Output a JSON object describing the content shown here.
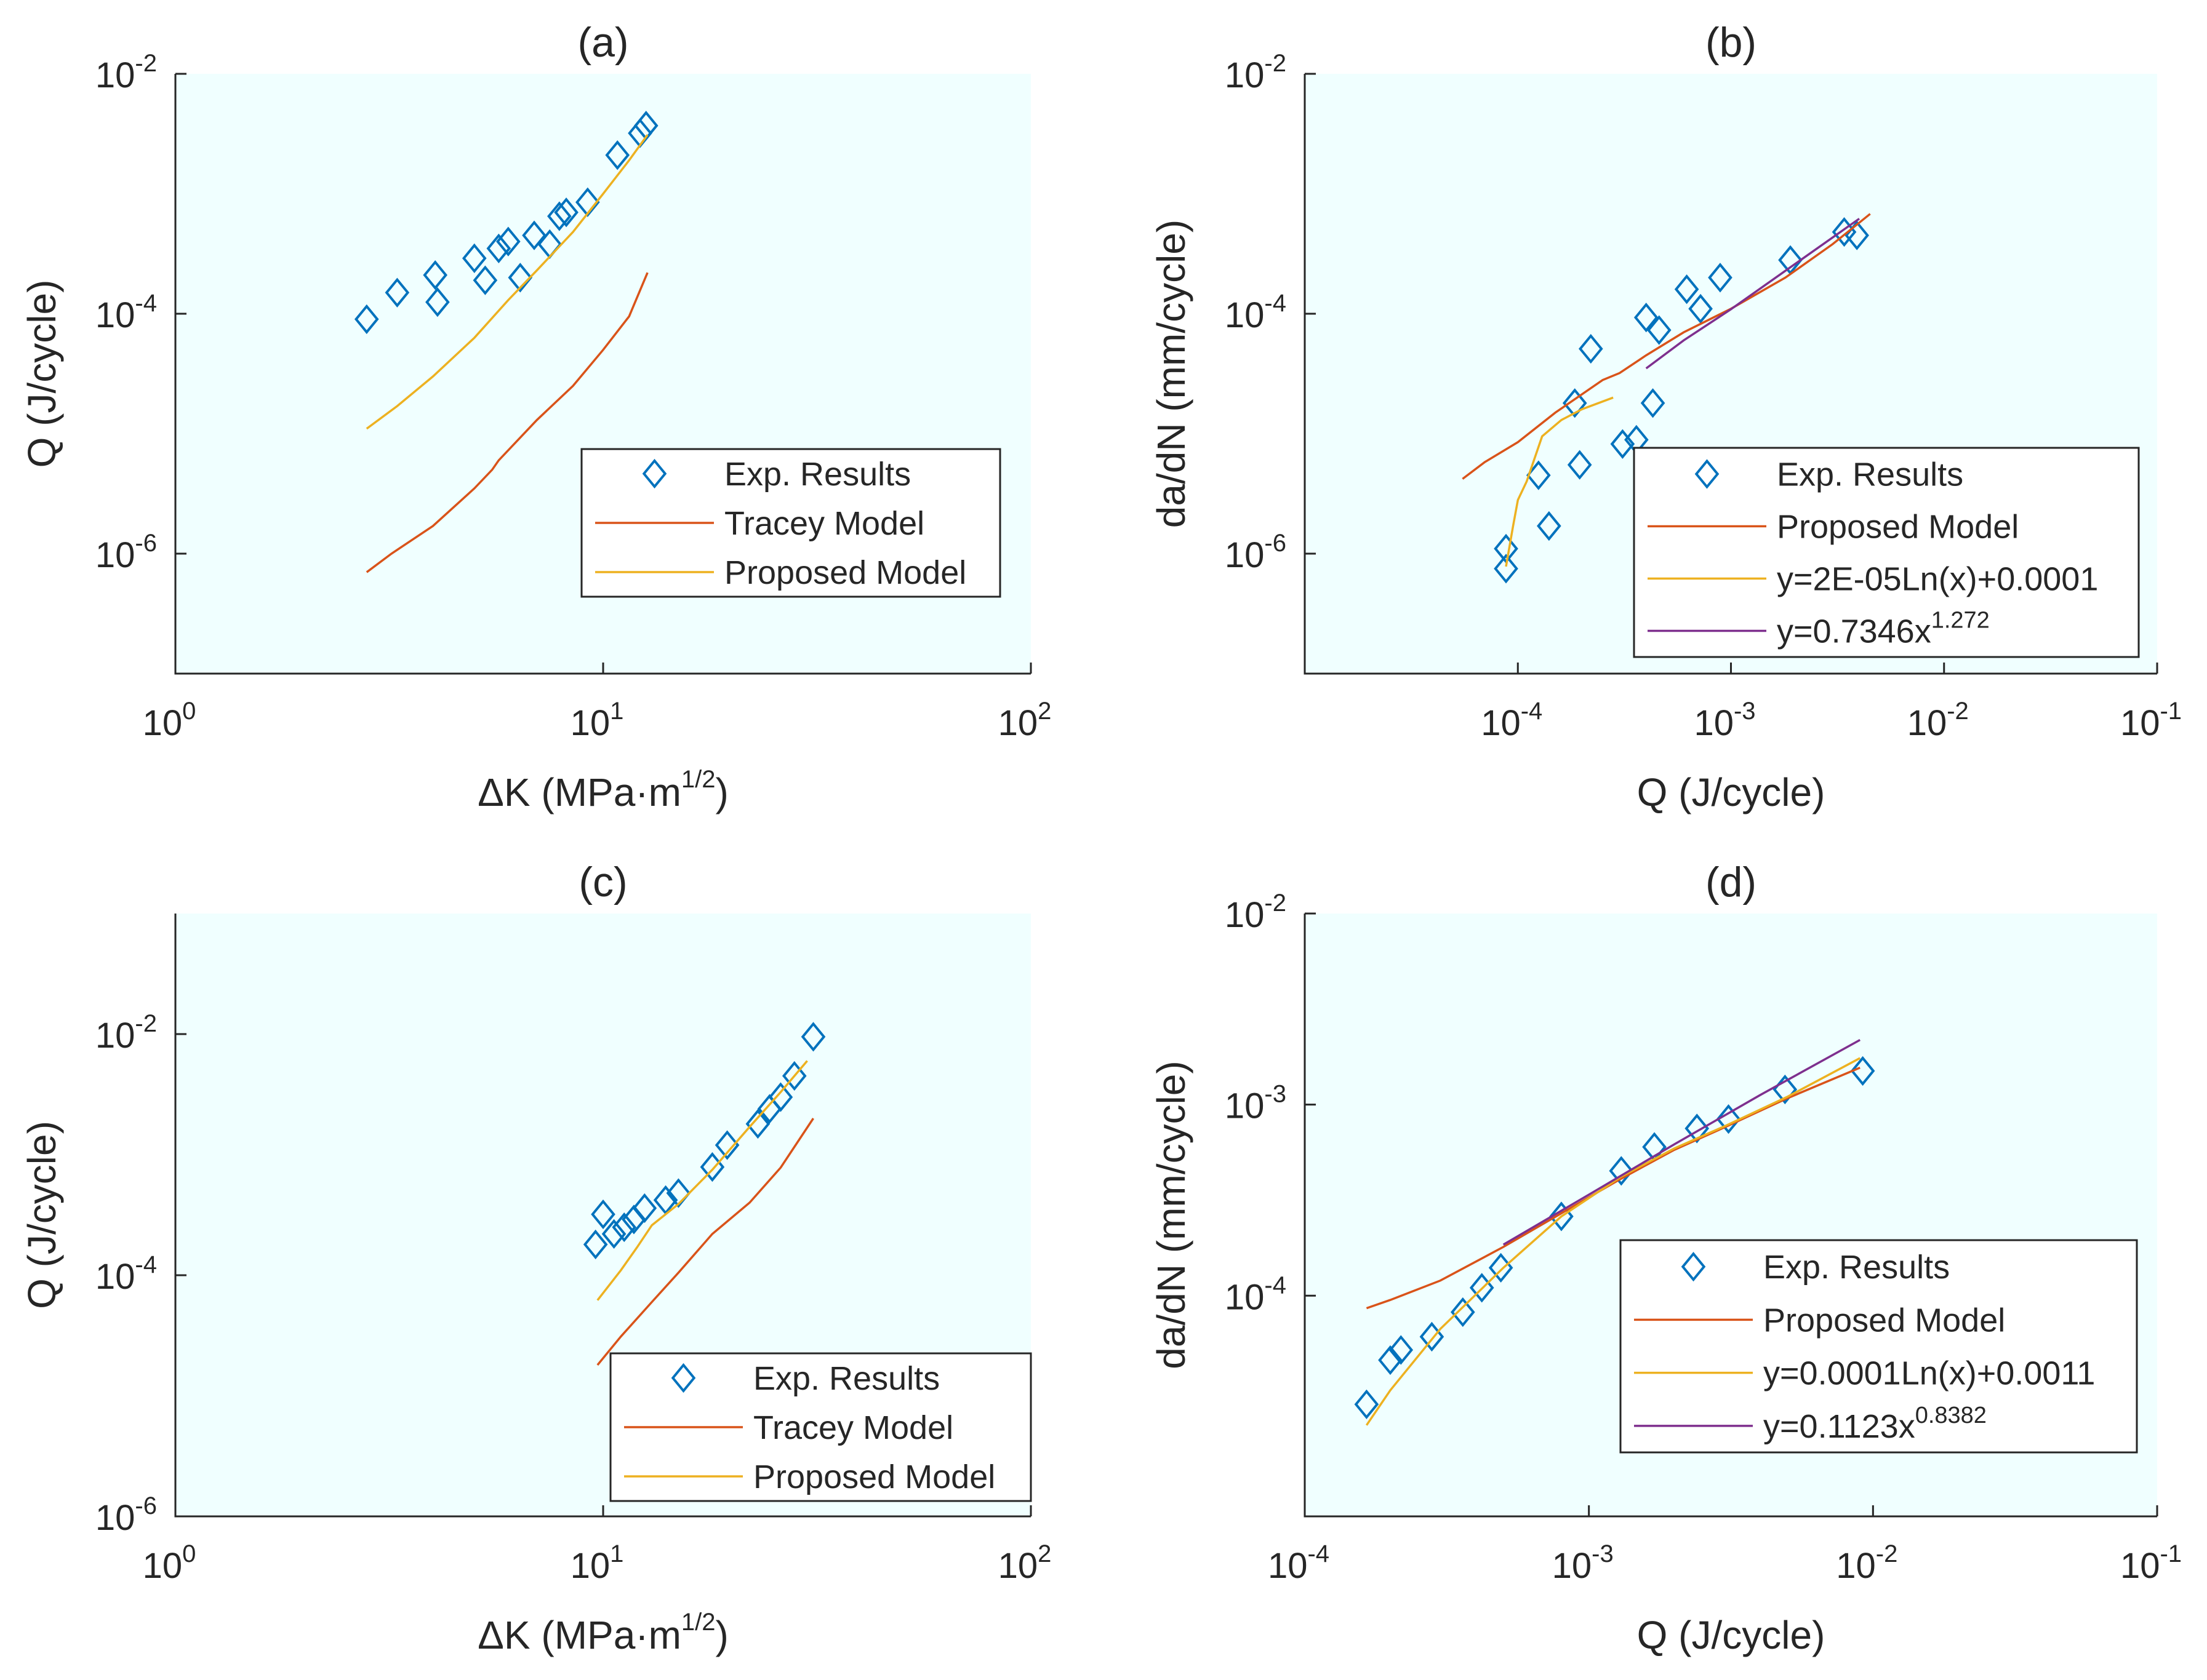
{
  "colors": {
    "plot_background": "#f0ffff",
    "experimental": "#0072bd",
    "tracey": "#d95319",
    "proposed": "#edb120",
    "power_fit": "#7e2f8e"
  },
  "chart_data": [
    {
      "panel": "(a)",
      "type": "scatter",
      "title": "(a)",
      "xlabel": {
        "base": "ΔK (MPa·m",
        "sup": "1/2",
        "close": ")"
      },
      "ylabel": "Q (J/cycle)",
      "xscale": "log",
      "yscale": "log",
      "xlim": [
        1,
        100
      ],
      "ylim": [
        1e-07,
        0.01
      ],
      "xticks": [
        {
          "value": 1,
          "base": "10",
          "exp": "0"
        },
        {
          "value": 10,
          "base": "10",
          "exp": "1"
        },
        {
          "value": 100,
          "base": "10",
          "exp": "2"
        }
      ],
      "yticks": [
        {
          "value": 1e-06,
          "base": "10",
          "exp": "-6"
        },
        {
          "value": 0.0001,
          "base": "10",
          "exp": "-4"
        },
        {
          "value": 0.01,
          "base": "10",
          "exp": "-2"
        }
      ],
      "legend_position": "lower-right",
      "series": [
        {
          "name": "Exp. Results",
          "kind": "markers",
          "color": "#0072bd",
          "points": [
            [
              2.8,
              9e-05
            ],
            [
              3.3,
              0.00015
            ],
            [
              4.05,
              0.00021
            ],
            [
              4.1,
              0.000125
            ],
            [
              5.0,
              0.00029
            ],
            [
              5.3,
              0.00019
            ],
            [
              5.7,
              0.00035
            ],
            [
              6.0,
              0.0004
            ],
            [
              6.4,
              0.0002
            ],
            [
              6.9,
              0.00045
            ],
            [
              7.5,
              0.00038
            ],
            [
              7.9,
              0.00065
            ],
            [
              8.2,
              0.0007
            ],
            [
              9.2,
              0.00085
            ],
            [
              10.8,
              0.0021
            ],
            [
              12.2,
              0.0032
            ],
            [
              12.6,
              0.0037
            ]
          ]
        },
        {
          "name": "Tracey Model",
          "kind": "line",
          "color": "#d95319",
          "points": [
            [
              2.8,
              7e-07
            ],
            [
              3.2,
              1e-06
            ],
            [
              4.0,
              1.7e-06
            ],
            [
              5.0,
              3.5e-06
            ],
            [
              5.5,
              5e-06
            ],
            [
              5.7,
              6e-06
            ],
            [
              7.0,
              1.3e-05
            ],
            [
              8.5,
              2.5e-05
            ],
            [
              10.0,
              5e-05
            ],
            [
              11.5,
              9.5e-05
            ],
            [
              12.7,
              0.00022
            ]
          ]
        },
        {
          "name": "Proposed Model",
          "kind": "line",
          "color": "#edb120",
          "points": [
            [
              2.8,
              1.1e-05
            ],
            [
              3.3,
              1.7e-05
            ],
            [
              4.0,
              3e-05
            ],
            [
              5.0,
              6.3e-05
            ],
            [
              6.0,
              0.00013
            ],
            [
              7.0,
              0.00023
            ],
            [
              8.5,
              0.00048
            ],
            [
              10.0,
              0.001
            ],
            [
              11.5,
              0.0019
            ],
            [
              12.7,
              0.0031
            ]
          ]
        }
      ]
    },
    {
      "panel": "(b)",
      "type": "scatter",
      "title": "(b)",
      "xlabel": {
        "base": "Q (J/cycle)",
        "sup": "",
        "close": ""
      },
      "ylabel": "da/dN (mm/cycle)",
      "xscale": "log",
      "yscale": "log",
      "xlim": [
        1e-05,
        0.1
      ],
      "ylim": [
        1e-07,
        0.01
      ],
      "xticks": [
        {
          "value": 0.0001,
          "base": "10",
          "exp": "-4"
        },
        {
          "value": 0.001,
          "base": "10",
          "exp": "-3"
        },
        {
          "value": 0.01,
          "base": "10",
          "exp": "-2"
        },
        {
          "value": 0.1,
          "base": "10",
          "exp": "-1"
        }
      ],
      "yticks": [
        {
          "value": 1e-06,
          "base": "10",
          "exp": "-6"
        },
        {
          "value": 0.0001,
          "base": "10",
          "exp": "-4"
        },
        {
          "value": 0.01,
          "base": "10",
          "exp": "-2"
        }
      ],
      "legend_position": "lower-right",
      "series": [
        {
          "name": "Exp. Results",
          "kind": "markers",
          "color": "#0072bd",
          "points": [
            [
              8.8e-05,
              1.1e-06
            ],
            [
              8.8e-05,
              7.5e-07
            ],
            [
              0.000125,
              4.5e-06
            ],
            [
              0.00014,
              1.7e-06
            ],
            [
              0.000185,
              1.8e-05
            ],
            [
              0.000195,
              5.5e-06
            ],
            [
              0.00022,
              5.1e-05
            ],
            [
              0.00031,
              8.2e-06
            ],
            [
              0.00036,
              8.9e-06
            ],
            [
              0.0004,
              9.3e-05
            ],
            [
              0.00043,
              1.8e-05
            ],
            [
              0.00046,
              7.3e-05
            ],
            [
              0.00062,
              0.00016
            ],
            [
              0.00072,
              0.00011
            ],
            [
              0.00089,
              0.0002
            ],
            [
              0.0019,
              0.00028
            ],
            [
              0.0034,
              0.00048
            ],
            [
              0.0039,
              0.00045
            ]
          ]
        },
        {
          "name": "Proposed Model",
          "kind": "line",
          "color": "#d95319",
          "points": [
            [
              5.5e-05,
              4.2e-06
            ],
            [
              7e-05,
              5.8e-06
            ],
            [
              0.0001,
              8.5e-06
            ],
            [
              0.00015,
              1.5e-05
            ],
            [
              0.00025,
              2.8e-05
            ],
            [
              0.0003,
              3.2e-05
            ],
            [
              0.0004,
              4.5e-05
            ],
            [
              0.0006,
              7e-05
            ],
            [
              0.001,
              0.00011
            ],
            [
              0.0018,
              0.0002
            ],
            [
              0.003,
              0.00038
            ],
            [
              0.0045,
              0.00068
            ]
          ]
        },
        {
          "name": "y=2E-05Ln(x)+0.0001",
          "kind": "line",
          "color": "#edb120",
          "points": [
            [
              8.8e-05,
              7.8e-07
            ],
            [
              9.5e-05,
              1.7e-06
            ],
            [
              0.0001,
              2.8e-06
            ],
            [
              0.00011,
              4e-06
            ],
            [
              0.00013,
              9.5e-06
            ],
            [
              0.00016,
              1.3e-05
            ],
            [
              0.0002,
              1.6e-05
            ],
            [
              0.00028,
              2e-05
            ]
          ]
        },
        {
          "name": "y=0.7346x",
          "sup": "1.272",
          "kind": "line",
          "color": "#7e2f8e",
          "points": [
            [
              0.0004,
              3.5e-05
            ],
            [
              0.0006,
              6e-05
            ],
            [
              0.001,
              0.000109
            ],
            [
              0.002,
              0.00026
            ],
            [
              0.004,
              0.00062
            ]
          ]
        }
      ]
    },
    {
      "panel": "(c)",
      "type": "scatter",
      "title": "(c)",
      "xlabel": {
        "base": "ΔK (MPa·m",
        "sup": "1/2",
        "close": ")"
      },
      "ylabel": "Q (J/cycle)",
      "xscale": "log",
      "yscale": "log",
      "xlim": [
        1,
        100
      ],
      "ylim": [
        1e-06,
        0.1
      ],
      "xticks": [
        {
          "value": 1,
          "base": "10",
          "exp": "0"
        },
        {
          "value": 10,
          "base": "10",
          "exp": "1"
        },
        {
          "value": 100,
          "base": "10",
          "exp": "2"
        }
      ],
      "yticks": [
        {
          "value": 1e-06,
          "base": "10",
          "exp": "-6"
        },
        {
          "value": 0.0001,
          "base": "10",
          "exp": "-4"
        },
        {
          "value": 0.01,
          "base": "10",
          "exp": "-2"
        }
      ],
      "legend_position": "lower-right",
      "series": [
        {
          "name": "Exp. Results",
          "kind": "markers",
          "color": "#0072bd",
          "points": [
            [
              9.6,
              0.00018
            ],
            [
              10.0,
              0.00032
            ],
            [
              10.6,
              0.00022
            ],
            [
              11.2,
              0.00025
            ],
            [
              11.8,
              0.00029
            ],
            [
              12.5,
              0.00036
            ],
            [
              14.0,
              0.00042
            ],
            [
              15.0,
              0.00048
            ],
            [
              18.0,
              0.00079
            ],
            [
              19.5,
              0.0012
            ],
            [
              23.0,
              0.0018
            ],
            [
              24.5,
              0.0024
            ],
            [
              26.0,
              0.003
            ],
            [
              28.0,
              0.0045
            ],
            [
              31.0,
              0.0095
            ]
          ]
        },
        {
          "name": "Tracey Model",
          "kind": "line",
          "color": "#d95319",
          "points": [
            [
              9.7,
              1.8e-05
            ],
            [
              11.0,
              3.1e-05
            ],
            [
              13.0,
              6e-05
            ],
            [
              15.0,
              0.000105
            ],
            [
              18.0,
              0.00022
            ],
            [
              22.0,
              0.0004
            ],
            [
              26.0,
              0.00078
            ],
            [
              31.0,
              0.002
            ]
          ]
        },
        {
          "name": "Proposed Model",
          "kind": "line",
          "color": "#edb120",
          "points": [
            [
              9.7,
              6.2e-05
            ],
            [
              11.0,
              0.00011
            ],
            [
              12.0,
              0.00017
            ],
            [
              13.0,
              0.00026
            ],
            [
              15.0,
              0.00039
            ],
            [
              18.0,
              0.00075
            ],
            [
              22.0,
              0.0017
            ],
            [
              26.0,
              0.0033
            ],
            [
              30.0,
              0.006
            ]
          ]
        }
      ]
    },
    {
      "panel": "(d)",
      "type": "scatter",
      "title": "(d)",
      "xlabel": {
        "base": "Q (J/cycle)",
        "sup": "",
        "close": ""
      },
      "ylabel": "da/dN (mm/cycle)",
      "xscale": "log",
      "yscale": "log",
      "xlim": [
        0.0001,
        0.1
      ],
      "ylim": [
        7e-06,
        0.01
      ],
      "xticks": [
        {
          "value": 0.0001,
          "base": "10",
          "exp": "-4"
        },
        {
          "value": 0.001,
          "base": "10",
          "exp": "-3"
        },
        {
          "value": 0.01,
          "base": "10",
          "exp": "-2"
        },
        {
          "value": 0.1,
          "base": "10",
          "exp": "-1"
        }
      ],
      "yticks": [
        {
          "value": 0.0001,
          "base": "10",
          "exp": "-4"
        },
        {
          "value": 0.001,
          "base": "10",
          "exp": "-3"
        },
        {
          "value": 0.01,
          "base": "10",
          "exp": "-2"
        }
      ],
      "legend_position": "lower-right",
      "series": [
        {
          "name": "Exp. Results",
          "kind": "markers",
          "color": "#0072bd",
          "points": [
            [
              0.000165,
              2.7e-05
            ],
            [
              0.0002,
              4.6e-05
            ],
            [
              0.000218,
              5.2e-05
            ],
            [
              0.00028,
              6.1e-05
            ],
            [
              0.00036,
              8.2e-05
            ],
            [
              0.00042,
              0.00011
            ],
            [
              0.00049,
              0.00014
            ],
            [
              0.0008,
              0.00026
            ],
            [
              0.0013,
              0.00045
            ],
            [
              0.0017,
              0.0006
            ],
            [
              0.0024,
              0.00075
            ],
            [
              0.0031,
              0.00084
            ],
            [
              0.0049,
              0.0012
            ],
            [
              0.0092,
              0.0015
            ]
          ]
        },
        {
          "name": "Proposed Model",
          "kind": "line",
          "color": "#d95319",
          "points": [
            [
              0.000165,
              8.6e-05
            ],
            [
              0.0002,
              9.5e-05
            ],
            [
              0.0003,
              0.00012
            ],
            [
              0.0005,
              0.00018
            ],
            [
              0.0008,
              0.00027
            ],
            [
              0.0013,
              0.00041
            ],
            [
              0.002,
              0.00058
            ],
            [
              0.003,
              0.00076
            ],
            [
              0.005,
              0.00108
            ],
            [
              0.009,
              0.00156
            ]
          ]
        },
        {
          "name": "y=0.0001Ln(x)+0.0011",
          "kind": "line",
          "color": "#edb120",
          "points": [
            [
              0.000165,
              2.1e-05
            ],
            [
              0.0002,
              3.2e-05
            ],
            [
              0.0003,
              6.7e-05
            ],
            [
              0.0005,
              0.00014
            ],
            [
              0.0008,
              0.00026
            ],
            [
              0.0013,
              0.00042
            ],
            [
              0.002,
              0.00059
            ],
            [
              0.003,
              0.00077
            ],
            [
              0.005,
              0.0011
            ],
            [
              0.009,
              0.00175
            ]
          ]
        },
        {
          "name": "y=0.1123x",
          "sup": "0.8382",
          "kind": "line",
          "color": "#7e2f8e",
          "points": [
            [
              0.0005,
              0.000185
            ],
            [
              0.001,
              0.000338
            ],
            [
              0.002,
              0.00062
            ],
            [
              0.004,
              0.00112
            ],
            [
              0.009,
              0.00218
            ]
          ]
        }
      ]
    }
  ]
}
